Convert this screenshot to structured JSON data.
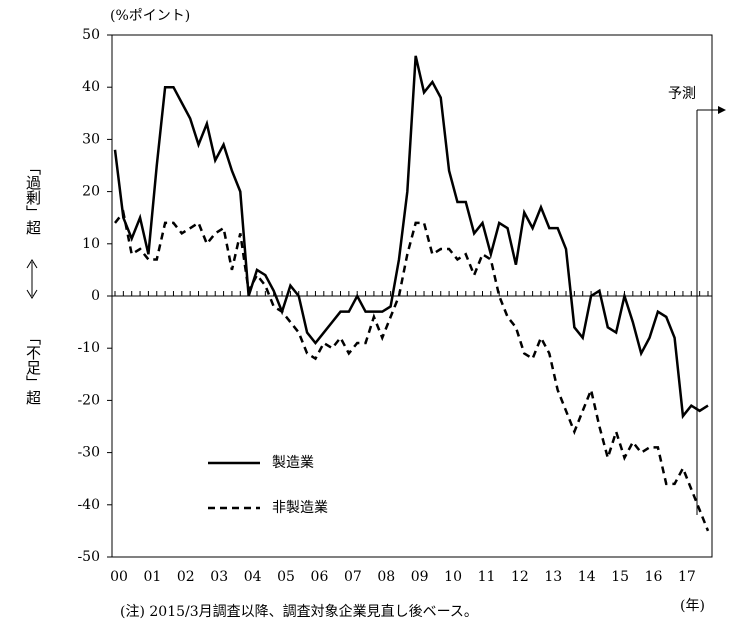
{
  "chart_data": {
    "type": "line",
    "y_unit_label": "(%ポイント)",
    "y_label_top": "「過剰」超",
    "y_label_bottom": "「不足」超",
    "forecast_label": "予測",
    "note": "(注) 2015/3月調査以降、調査対象企業見直し後ベース。",
    "x_unit_label": "(年)",
    "categories": [
      "00",
      null,
      null,
      null,
      "01",
      null,
      null,
      null,
      "02",
      null,
      null,
      null,
      "03",
      null,
      null,
      null,
      "04",
      null,
      null,
      null,
      "05",
      null,
      null,
      null,
      "06",
      null,
      null,
      null,
      "07",
      null,
      null,
      null,
      "08",
      null,
      null,
      null,
      "09",
      null,
      null,
      null,
      "10",
      null,
      null,
      null,
      "11",
      null,
      null,
      null,
      "12",
      null,
      null,
      null,
      "13",
      null,
      null,
      null,
      "14",
      null,
      null,
      null,
      "15",
      null,
      null,
      null,
      "16",
      null,
      null,
      null,
      "17",
      null,
      null,
      null
    ],
    "series": [
      {
        "name": "製造業",
        "color": "#000000",
        "dash": false,
        "values": [
          28,
          15,
          11,
          15,
          8,
          25,
          40,
          40,
          37,
          34,
          29,
          33,
          26,
          29,
          24,
          20,
          0,
          5,
          4,
          1,
          -3,
          2,
          0,
          -7,
          -9,
          -7,
          -5,
          -3,
          -3,
          0,
          -3,
          -3,
          -3,
          -2,
          7,
          20,
          46,
          39,
          41,
          38,
          24,
          18,
          18,
          12,
          14,
          8,
          14,
          13,
          6,
          16,
          13,
          17,
          13,
          13,
          9,
          -6,
          -8,
          0,
          1,
          -6,
          -7,
          0,
          -5,
          -11,
          -8,
          -3,
          -4,
          -8,
          -23,
          -21,
          -22,
          -21
        ]
      },
      {
        "name": "非製造業",
        "color": "#000000",
        "dash": true,
        "values": [
          14,
          16,
          8,
          9,
          7,
          7,
          14,
          14,
          12,
          13,
          14,
          10,
          12,
          13,
          5,
          12,
          1,
          4,
          2,
          -2,
          -3,
          -5,
          -7,
          -11,
          -12,
          -9,
          -10,
          -8,
          -11,
          -9,
          -9,
          -4,
          -8,
          -4,
          0,
          8,
          14,
          14,
          8,
          9,
          9,
          7,
          8,
          4,
          8,
          7,
          0,
          -4,
          -6,
          -11,
          -12,
          -8,
          -11,
          -18,
          -22,
          -26,
          -22,
          -18,
          -25,
          -31,
          -26,
          -31,
          -28,
          -30,
          -29,
          -29,
          -36,
          -36,
          -33,
          -37,
          -41,
          -45
        ]
      }
    ],
    "ylim": [
      -50,
      50
    ],
    "yticks": [
      -50,
      -40,
      -30,
      -20,
      -10,
      0,
      10,
      20,
      30,
      40,
      50
    ],
    "grid": false
  }
}
